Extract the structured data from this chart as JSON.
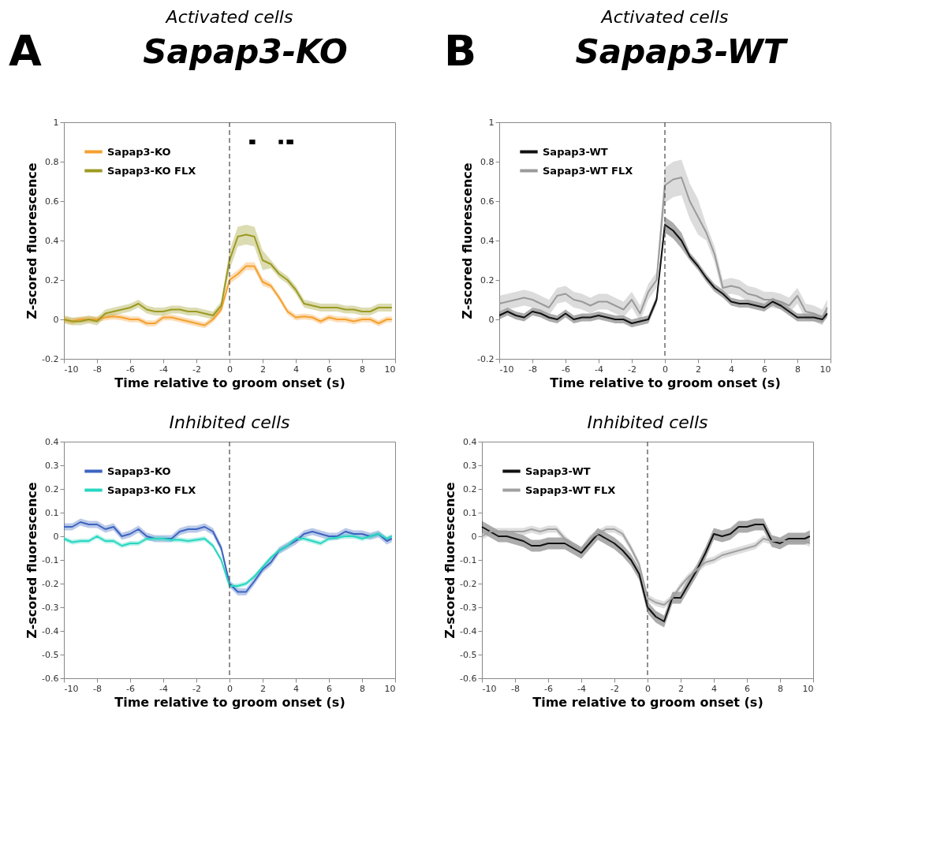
{
  "chart_data": [
    {
      "type": "line",
      "title": "Activated cells",
      "xlabel": "Time relative to groom onset (s)",
      "ylabel": "Z-scored fluorescence",
      "annotations": [
        "A",
        "Sapap3-KO"
      ],
      "x": [
        -10,
        -9.5,
        -9,
        -8.5,
        -8,
        -7.5,
        -7,
        -6.5,
        -6,
        -5.5,
        -5,
        -4.5,
        -4,
        -3.5,
        -3,
        -2.5,
        -2,
        -1.5,
        -1,
        -0.5,
        0,
        0.5,
        1,
        1.5,
        2,
        2.5,
        3,
        3.5,
        4,
        4.5,
        5,
        5.5,
        6,
        6.5,
        7,
        7.5,
        8,
        8.5,
        9,
        9.5,
        9.8
      ],
      "xlim": [
        -10,
        10
      ],
      "xticks": [
        -10,
        -8,
        -6,
        -4,
        -2,
        0,
        2,
        4,
        6,
        8,
        10
      ],
      "ylim": [
        -0.2,
        1
      ],
      "yticks": [
        -0.2,
        0,
        0.2,
        0.4,
        0.6,
        0.8,
        1
      ],
      "legend": "top left",
      "ref_lines": [
        {
          "axis": "x",
          "value": 0,
          "line_style": "dashed",
          "color": "#555555"
        }
      ],
      "series": [
        {
          "name": "Sapap3-KO",
          "color": "#f5a030",
          "values": [
            0.0,
            -0.01,
            0.0,
            0.0,
            0.0,
            0.01,
            0.015,
            0.01,
            0.0,
            0.0,
            -0.02,
            -0.02,
            0.01,
            0.01,
            0.0,
            -0.01,
            -0.02,
            -0.03,
            0.0,
            0.05,
            0.2,
            0.23,
            0.27,
            0.27,
            0.19,
            0.17,
            0.11,
            0.04,
            0.01,
            0.015,
            0.01,
            -0.01,
            0.01,
            0.0,
            0.0,
            -0.01,
            0.0,
            0.0,
            -0.02,
            0.0,
            0.0
          ],
          "lower": [
            -0.015,
            -0.025,
            -0.015,
            -0.015,
            -0.015,
            -0.005,
            0.0,
            -0.005,
            -0.015,
            -0.015,
            -0.035,
            -0.035,
            -0.005,
            -0.005,
            -0.015,
            -0.025,
            -0.035,
            -0.045,
            -0.015,
            0.035,
            0.18,
            0.21,
            0.25,
            0.25,
            0.17,
            0.155,
            0.095,
            0.025,
            -0.005,
            0.0,
            -0.005,
            -0.025,
            -0.005,
            -0.015,
            -0.015,
            -0.025,
            -0.015,
            -0.015,
            -0.035,
            -0.015,
            -0.015
          ],
          "upper": [
            0.015,
            0.005,
            0.015,
            0.015,
            0.015,
            0.025,
            0.03,
            0.025,
            0.015,
            0.015,
            -0.005,
            -0.005,
            0.025,
            0.025,
            0.015,
            0.005,
            -0.005,
            -0.015,
            0.015,
            0.065,
            0.22,
            0.25,
            0.29,
            0.29,
            0.21,
            0.185,
            0.125,
            0.055,
            0.025,
            0.03,
            0.025,
            0.005,
            0.025,
            0.015,
            0.015,
            0.005,
            0.015,
            0.015,
            -0.005,
            0.015,
            0.015
          ]
        },
        {
          "name": "Sapap3-KO FLX",
          "color": "#9c9a22",
          "values": [
            0.0,
            -0.01,
            -0.01,
            0.0,
            -0.01,
            0.03,
            0.04,
            0.05,
            0.06,
            0.08,
            0.05,
            0.04,
            0.04,
            0.05,
            0.05,
            0.04,
            0.04,
            0.03,
            0.02,
            0.07,
            0.3,
            0.42,
            0.43,
            0.42,
            0.3,
            0.28,
            0.23,
            0.2,
            0.15,
            0.08,
            0.07,
            0.06,
            0.06,
            0.06,
            0.05,
            0.05,
            0.04,
            0.04,
            0.06,
            0.06,
            0.06
          ],
          "lower": [
            -0.02,
            -0.03,
            -0.03,
            -0.02,
            -0.03,
            0.01,
            0.02,
            0.03,
            0.04,
            0.06,
            0.03,
            0.02,
            0.02,
            0.03,
            0.03,
            0.02,
            0.02,
            0.01,
            0.0,
            0.05,
            0.25,
            0.37,
            0.38,
            0.37,
            0.25,
            0.26,
            0.21,
            0.18,
            0.13,
            0.06,
            0.05,
            0.04,
            0.04,
            0.04,
            0.03,
            0.03,
            0.02,
            0.02,
            0.04,
            0.04,
            0.04
          ],
          "upper": [
            0.02,
            0.01,
            0.01,
            0.02,
            0.01,
            0.05,
            0.06,
            0.07,
            0.08,
            0.1,
            0.07,
            0.06,
            0.06,
            0.07,
            0.07,
            0.06,
            0.06,
            0.05,
            0.04,
            0.09,
            0.35,
            0.47,
            0.48,
            0.47,
            0.35,
            0.3,
            0.25,
            0.22,
            0.17,
            0.1,
            0.09,
            0.08,
            0.08,
            0.08,
            0.07,
            0.07,
            0.06,
            0.06,
            0.08,
            0.08,
            0.08
          ]
        },
        {
          "color": "#000000",
          "x": [
            1.2,
            1.55,
            2.5,
            3.45,
            3.85
          ],
          "values": [
            0.9,
            0.9,
            null,
            0.9,
            0.9
          ]
        },
        {
          "type": "scatter",
          "marker": "square",
          "color": "#000000",
          "x": [
            3.1
          ],
          "values": [
            0.9
          ]
        }
      ]
    },
    {
      "type": "line",
      "title": "Activated cells",
      "xlabel": "Time relative to groom onset (s)",
      "ylabel": "Z-scored fluorescence",
      "annotations": [
        "B",
        "Sapap3-WT"
      ],
      "x": [
        -10,
        -9.5,
        -9,
        -8.5,
        -8,
        -7.5,
        -7,
        -6.5,
        -6,
        -5.5,
        -5,
        -4.5,
        -4,
        -3.5,
        -3,
        -2.5,
        -2,
        -1.5,
        -1,
        -0.5,
        0,
        0.5,
        1,
        1.5,
        2,
        2.5,
        3,
        3.5,
        4,
        4.5,
        5,
        5.5,
        6,
        6.5,
        7,
        7.5,
        8,
        8.5,
        9,
        9.5,
        9.8
      ],
      "xlim": [
        -10,
        10
      ],
      "xticks": [
        -10,
        -8,
        -6,
        -4,
        -2,
        0,
        2,
        4,
        6,
        8,
        10
      ],
      "ylim": [
        -0.2,
        1
      ],
      "yticks": [
        -0.2,
        0,
        0.2,
        0.4,
        0.6,
        0.8,
        1
      ],
      "legend": "top left",
      "ref_lines": [
        {
          "axis": "x",
          "value": 0,
          "line_style": "dashed",
          "color": "#555555"
        }
      ],
      "series": [
        {
          "name": "Sapap3-WT",
          "color": "#111111",
          "values": [
            0.02,
            0.04,
            0.02,
            0.01,
            0.04,
            0.03,
            0.01,
            0.0,
            0.03,
            0.0,
            0.01,
            0.01,
            0.02,
            0.01,
            0.0,
            0.0,
            -0.02,
            -0.01,
            0.0,
            0.1,
            0.48,
            0.45,
            0.4,
            0.32,
            0.27,
            0.21,
            0.16,
            0.13,
            0.09,
            0.08,
            0.08,
            0.07,
            0.06,
            0.09,
            0.07,
            0.04,
            0.01,
            0.01,
            0.01,
            0.0,
            0.03
          ],
          "lower": [
            0.0,
            0.02,
            0.0,
            -0.01,
            0.02,
            0.01,
            -0.01,
            -0.02,
            0.01,
            -0.02,
            -0.01,
            -0.01,
            0.0,
            -0.01,
            -0.02,
            -0.02,
            -0.04,
            -0.03,
            -0.02,
            0.08,
            0.44,
            0.41,
            0.36,
            0.3,
            0.25,
            0.19,
            0.14,
            0.11,
            0.07,
            0.06,
            0.06,
            0.05,
            0.04,
            0.07,
            0.05,
            0.02,
            -0.01,
            -0.01,
            -0.01,
            -0.02,
            0.01
          ],
          "upper": [
            0.04,
            0.06,
            0.04,
            0.03,
            0.06,
            0.05,
            0.03,
            0.02,
            0.05,
            0.02,
            0.03,
            0.03,
            0.04,
            0.03,
            0.02,
            0.02,
            0.0,
            0.01,
            0.02,
            0.12,
            0.52,
            0.49,
            0.44,
            0.34,
            0.29,
            0.23,
            0.18,
            0.15,
            0.11,
            0.1,
            0.1,
            0.09,
            0.08,
            0.11,
            0.09,
            0.06,
            0.03,
            0.03,
            0.03,
            0.02,
            0.05
          ]
        },
        {
          "name": "Sapap3-WT FLX",
          "color": "#9a9a9a",
          "values": [
            0.08,
            0.09,
            0.1,
            0.11,
            0.1,
            0.08,
            0.06,
            0.12,
            0.13,
            0.1,
            0.09,
            0.07,
            0.09,
            0.09,
            0.07,
            0.05,
            0.1,
            0.03,
            0.14,
            0.2,
            0.68,
            0.71,
            0.72,
            0.6,
            0.52,
            0.44,
            0.33,
            0.16,
            0.17,
            0.16,
            0.13,
            0.12,
            0.1,
            0.1,
            0.09,
            0.07,
            0.12,
            0.04,
            0.03,
            0.01,
            0.06
          ],
          "lower": [
            0.04,
            0.05,
            0.06,
            0.07,
            0.06,
            0.04,
            0.02,
            0.08,
            0.09,
            0.06,
            0.05,
            0.03,
            0.05,
            0.05,
            0.03,
            0.01,
            0.06,
            -0.01,
            0.1,
            0.16,
            0.59,
            0.62,
            0.63,
            0.51,
            0.43,
            0.4,
            0.29,
            0.12,
            0.13,
            0.12,
            0.09,
            0.08,
            0.06,
            0.06,
            0.05,
            0.03,
            0.08,
            0.0,
            -0.01,
            -0.03,
            0.02
          ],
          "upper": [
            0.12,
            0.13,
            0.14,
            0.15,
            0.14,
            0.12,
            0.1,
            0.16,
            0.17,
            0.14,
            0.13,
            0.11,
            0.13,
            0.13,
            0.11,
            0.09,
            0.14,
            0.07,
            0.18,
            0.24,
            0.77,
            0.8,
            0.81,
            0.69,
            0.61,
            0.48,
            0.37,
            0.2,
            0.21,
            0.2,
            0.17,
            0.16,
            0.14,
            0.14,
            0.13,
            0.11,
            0.16,
            0.08,
            0.07,
            0.05,
            0.1
          ]
        }
      ]
    },
    {
      "type": "line",
      "title": "Inhibited cells",
      "xlabel": "Time relative to groom onset (s)",
      "ylabel": "Z-scored fluorescence",
      "x": [
        -10,
        -9.5,
        -9,
        -8.5,
        -8,
        -7.5,
        -7,
        -6.5,
        -6,
        -5.5,
        -5,
        -4.5,
        -4,
        -3.5,
        -3,
        -2.5,
        -2,
        -1.5,
        -1,
        -0.5,
        0,
        0.5,
        1,
        1.5,
        2,
        2.5,
        3,
        3.5,
        4,
        4.5,
        5,
        5.5,
        6,
        6.5,
        7,
        7.5,
        8,
        8.5,
        9,
        9.5,
        9.8
      ],
      "xlim": [
        -10,
        10
      ],
      "xticks": [
        -10,
        -8,
        -6,
        -4,
        -2,
        0,
        2,
        4,
        6,
        8,
        10
      ],
      "ylim": [
        -0.6,
        0.4
      ],
      "yticks": [
        -0.6,
        -0.5,
        -0.4,
        -0.3,
        -0.2,
        -0.1,
        0,
        0.1,
        0.2,
        0.3,
        0.4
      ],
      "legend": "top left",
      "ref_lines": [
        {
          "axis": "x",
          "value": 0,
          "line_style": "dashed",
          "color": "#555555"
        }
      ],
      "series": [
        {
          "name": "Sapap3-KO",
          "color": "#3c64c0",
          "values": [
            0.04,
            0.04,
            0.06,
            0.05,
            0.05,
            0.03,
            0.04,
            0.0,
            0.01,
            0.03,
            0.0,
            -0.01,
            -0.01,
            -0.01,
            0.02,
            0.03,
            0.03,
            0.04,
            0.02,
            -0.05,
            -0.2,
            -0.235,
            -0.235,
            -0.19,
            -0.14,
            -0.11,
            -0.06,
            -0.04,
            -0.02,
            0.01,
            0.02,
            0.01,
            0.0,
            0.0,
            0.02,
            0.01,
            0.01,
            0.0,
            0.01,
            -0.02,
            -0.01
          ],
          "lower": [
            0.025,
            0.025,
            0.045,
            0.035,
            0.035,
            0.015,
            0.025,
            -0.015,
            -0.005,
            0.015,
            -0.015,
            -0.025,
            -0.025,
            -0.025,
            0.005,
            0.015,
            0.015,
            0.025,
            0.005,
            -0.065,
            -0.215,
            -0.25,
            -0.25,
            -0.205,
            -0.155,
            -0.125,
            -0.075,
            -0.055,
            -0.035,
            -0.005,
            0.005,
            -0.005,
            -0.015,
            -0.015,
            0.005,
            -0.005,
            -0.005,
            -0.015,
            -0.005,
            -0.035,
            -0.025
          ],
          "upper": [
            0.055,
            0.055,
            0.075,
            0.065,
            0.065,
            0.045,
            0.055,
            0.015,
            0.025,
            0.045,
            0.015,
            0.005,
            0.005,
            0.005,
            0.035,
            0.045,
            0.045,
            0.055,
            0.035,
            -0.035,
            -0.185,
            -0.22,
            -0.22,
            -0.175,
            -0.125,
            -0.095,
            -0.045,
            -0.025,
            -0.005,
            0.025,
            0.035,
            0.025,
            0.015,
            0.015,
            0.035,
            0.025,
            0.025,
            0.015,
            0.025,
            -0.005,
            0.005
          ]
        },
        {
          "name": "Sapap3-KO FLX",
          "color": "#28d6c0",
          "values": [
            -0.01,
            -0.025,
            -0.02,
            -0.02,
            0.0,
            -0.02,
            -0.02,
            -0.04,
            -0.03,
            -0.03,
            -0.01,
            -0.01,
            -0.01,
            -0.015,
            -0.015,
            -0.02,
            -0.015,
            -0.01,
            -0.04,
            -0.1,
            -0.21,
            -0.21,
            -0.2,
            -0.17,
            -0.13,
            -0.09,
            -0.06,
            -0.04,
            -0.01,
            -0.01,
            -0.02,
            -0.03,
            -0.01,
            -0.005,
            0.0,
            0.0,
            -0.01,
            0.0,
            0.01,
            -0.01,
            0.0
          ],
          "lower": [
            -0.02,
            -0.035,
            -0.03,
            -0.03,
            -0.01,
            -0.03,
            -0.03,
            -0.05,
            -0.04,
            -0.04,
            -0.02,
            -0.02,
            -0.02,
            -0.025,
            -0.025,
            -0.03,
            -0.025,
            -0.02,
            -0.05,
            -0.11,
            -0.22,
            -0.22,
            -0.21,
            -0.18,
            -0.14,
            -0.1,
            -0.07,
            -0.05,
            -0.02,
            -0.02,
            -0.03,
            -0.04,
            -0.02,
            -0.015,
            -0.01,
            -0.01,
            -0.02,
            -0.01,
            0.0,
            -0.02,
            -0.01
          ],
          "upper": [
            0.0,
            -0.015,
            -0.01,
            -0.01,
            0.01,
            -0.01,
            -0.01,
            -0.03,
            -0.02,
            -0.02,
            0.0,
            0.0,
            0.0,
            -0.005,
            -0.005,
            -0.01,
            -0.005,
            0.0,
            -0.03,
            -0.09,
            -0.2,
            -0.2,
            -0.19,
            -0.16,
            -0.12,
            -0.08,
            -0.05,
            -0.03,
            0.0,
            0.0,
            -0.01,
            -0.02,
            0.0,
            0.005,
            0.01,
            0.01,
            0.0,
            0.01,
            0.02,
            0.0,
            0.01
          ]
        }
      ]
    },
    {
      "type": "line",
      "title": "Inhibited cells",
      "xlabel": "Time relative to groom onset (s)",
      "ylabel": "Z-scored fluorescence",
      "x": [
        -10,
        -9.5,
        -9,
        -8.5,
        -8,
        -7.5,
        -7,
        -6.5,
        -6,
        -5.5,
        -5,
        -4.5,
        -4,
        -3.5,
        -3,
        -2.5,
        -2,
        -1.5,
        -1,
        -0.5,
        0,
        0.5,
        1,
        1.5,
        2,
        2.5,
        3,
        3.5,
        4,
        4.5,
        5,
        5.5,
        6,
        6.5,
        7,
        7.5,
        8,
        8.5,
        9,
        9.5,
        9.8
      ],
      "xlim": [
        -10,
        10
      ],
      "xticks": [
        -10,
        -8,
        -6,
        -4,
        -2,
        0,
        2,
        4,
        6,
        8,
        10
      ],
      "ylim": [
        -0.6,
        0.4
      ],
      "yticks": [
        -0.6,
        -0.5,
        -0.4,
        -0.3,
        -0.2,
        -0.1,
        0,
        0.1,
        0.2,
        0.3,
        0.4
      ],
      "legend": "top left",
      "ref_lines": [
        {
          "axis": "x",
          "value": 0,
          "line_style": "dashed",
          "color": "#555555"
        }
      ],
      "series": [
        {
          "name": "Sapap3-WT",
          "color": "#111111",
          "values": [
            0.04,
            0.02,
            0.0,
            0.0,
            -0.01,
            -0.02,
            -0.04,
            -0.04,
            -0.03,
            -0.03,
            -0.03,
            -0.05,
            -0.07,
            -0.03,
            0.01,
            -0.01,
            -0.03,
            -0.06,
            -0.1,
            -0.16,
            -0.3,
            -0.34,
            -0.36,
            -0.26,
            -0.26,
            -0.2,
            -0.14,
            -0.07,
            0.01,
            0.0,
            0.01,
            0.04,
            0.04,
            0.05,
            0.05,
            -0.02,
            -0.03,
            -0.01,
            -0.01,
            -0.01,
            0.0
          ],
          "lower": [
            0.015,
            -0.005,
            -0.025,
            -0.025,
            -0.035,
            -0.045,
            -0.065,
            -0.065,
            -0.055,
            -0.055,
            -0.055,
            -0.075,
            -0.095,
            -0.055,
            -0.015,
            -0.035,
            -0.055,
            -0.085,
            -0.125,
            -0.185,
            -0.325,
            -0.365,
            -0.385,
            -0.285,
            -0.285,
            -0.225,
            -0.165,
            -0.095,
            -0.015,
            -0.025,
            -0.015,
            0.015,
            0.015,
            0.025,
            0.025,
            -0.045,
            -0.055,
            -0.035,
            -0.035,
            -0.035,
            -0.025
          ],
          "upper": [
            0.065,
            0.045,
            0.025,
            0.025,
            0.015,
            0.005,
            -0.015,
            -0.015,
            -0.005,
            -0.005,
            -0.005,
            -0.025,
            -0.045,
            -0.005,
            0.035,
            0.015,
            -0.005,
            -0.035,
            -0.075,
            -0.135,
            -0.275,
            -0.315,
            -0.335,
            -0.235,
            -0.235,
            -0.175,
            -0.115,
            -0.045,
            0.035,
            0.025,
            0.035,
            0.065,
            0.065,
            0.075,
            0.075,
            0.005,
            -0.005,
            0.015,
            0.015,
            0.015,
            0.025
          ]
        },
        {
          "name": "Sapap3-WT FLX",
          "color": "#a0a0a0",
          "values": [
            0.0,
            0.02,
            0.02,
            0.02,
            0.02,
            0.02,
            0.03,
            0.02,
            0.03,
            0.03,
            -0.01,
            -0.04,
            -0.06,
            -0.01,
            0.01,
            0.03,
            0.03,
            0.01,
            -0.05,
            -0.12,
            -0.26,
            -0.28,
            -0.29,
            -0.26,
            -0.21,
            -0.17,
            -0.14,
            -0.11,
            -0.1,
            -0.08,
            -0.07,
            -0.06,
            -0.05,
            -0.04,
            -0.01,
            -0.02,
            -0.02,
            -0.02,
            -0.02,
            -0.02,
            -0.03
          ],
          "lower": [
            -0.015,
            0.005,
            0.005,
            0.005,
            0.005,
            0.005,
            0.015,
            0.005,
            0.015,
            0.015,
            -0.025,
            -0.055,
            -0.075,
            -0.025,
            -0.005,
            0.015,
            0.015,
            -0.005,
            -0.065,
            -0.135,
            -0.275,
            -0.295,
            -0.305,
            -0.275,
            -0.225,
            -0.185,
            -0.155,
            -0.125,
            -0.115,
            -0.095,
            -0.085,
            -0.075,
            -0.065,
            -0.055,
            -0.025,
            -0.035,
            -0.035,
            -0.035,
            -0.035,
            -0.035,
            -0.045
          ],
          "upper": [
            0.015,
            0.035,
            0.035,
            0.035,
            0.035,
            0.035,
            0.045,
            0.035,
            0.045,
            0.045,
            0.005,
            -0.025,
            -0.045,
            0.005,
            0.025,
            0.045,
            0.045,
            0.025,
            -0.035,
            -0.105,
            -0.245,
            -0.265,
            -0.275,
            -0.245,
            -0.195,
            -0.155,
            -0.125,
            -0.095,
            -0.085,
            -0.065,
            -0.055,
            -0.045,
            -0.035,
            -0.025,
            0.005,
            -0.015,
            -0.015,
            -0.015,
            -0.015,
            -0.015,
            -0.015
          ]
        }
      ]
    }
  ]
}
